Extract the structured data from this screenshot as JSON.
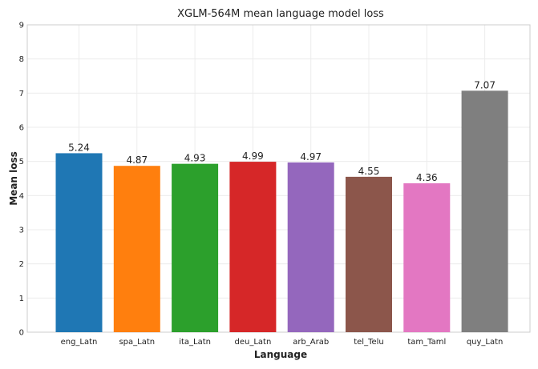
{
  "chart_data": {
    "type": "bar",
    "title": "XGLM-564M mean language model loss",
    "xlabel": "Language",
    "ylabel": "Mean loss",
    "ylim": [
      0,
      9
    ],
    "yticks": [
      0,
      1,
      2,
      3,
      4,
      5,
      6,
      7,
      8,
      9
    ],
    "grid": true,
    "categories": [
      "eng_Latn",
      "spa_Latn",
      "ita_Latn",
      "deu_Latn",
      "arb_Arab",
      "tel_Telu",
      "tam_Taml",
      "quy_Latn"
    ],
    "values": [
      5.24,
      4.87,
      4.93,
      4.99,
      4.97,
      4.55,
      4.36,
      7.07
    ],
    "value_labels": [
      "5.24",
      "4.87",
      "4.93",
      "4.99",
      "4.97",
      "4.55",
      "4.36",
      "7.07"
    ],
    "colors": [
      "#1f77b4",
      "#ff7f0e",
      "#2ca02c",
      "#d62728",
      "#9467bd",
      "#8c564b",
      "#e377c2",
      "#7f7f7f"
    ]
  }
}
